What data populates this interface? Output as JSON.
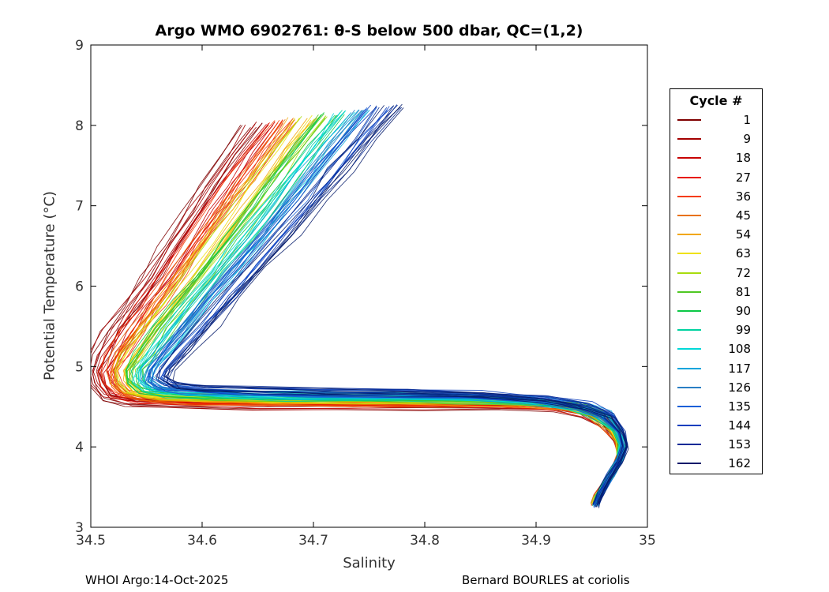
{
  "page": {
    "title": "Argo WMO 6902761: θ-S below 500 dbar,  QC=(1,2)",
    "footer_left": "WHOI Argo:14-Oct-2025",
    "footer_right": "Bernard BOURLES at coriolis"
  },
  "chart_data": {
    "type": "line",
    "title": "Argo WMO 6902761: θ-S below 500 dbar,  QC=(1,2)",
    "xlabel": "Salinity",
    "ylabel": "Potential Temperature (°C)",
    "xlim": [
      34.5,
      35.0
    ],
    "ylim": [
      3,
      9
    ],
    "xticks": [
      34.5,
      34.6,
      34.7,
      34.8,
      34.9,
      35
    ],
    "xtick_labels": [
      "34.5",
      "34.6",
      "34.7",
      "34.8",
      "34.9",
      "35"
    ],
    "yticks": [
      3,
      4,
      5,
      6,
      7,
      8,
      9
    ],
    "ytick_labels": [
      "3",
      "4",
      "5",
      "6",
      "7",
      "8",
      "9"
    ],
    "grid": false,
    "legend": {
      "title": "Cycle #",
      "position": "right-outside"
    },
    "series": [
      {
        "name": "1",
        "color": "#7f0000",
        "blend": 0.0
      },
      {
        "name": "9",
        "color": "#a40000",
        "blend": 0.056
      },
      {
        "name": "18",
        "color": "#c80000",
        "blend": 0.111
      },
      {
        "name": "27",
        "color": "#e81800",
        "blend": 0.167
      },
      {
        "name": "36",
        "color": "#f53b00",
        "blend": 0.222
      },
      {
        "name": "45",
        "color": "#e87211",
        "blend": 0.278
      },
      {
        "name": "54",
        "color": "#f2a705",
        "blend": 0.333
      },
      {
        "name": "63",
        "color": "#efe111",
        "blend": 0.389
      },
      {
        "name": "72",
        "color": "#a8dc0e",
        "blend": 0.444
      },
      {
        "name": "81",
        "color": "#4fc822",
        "blend": 0.5
      },
      {
        "name": "90",
        "color": "#0cc846",
        "blend": 0.556
      },
      {
        "name": "99",
        "color": "#00d2a0",
        "blend": 0.611
      },
      {
        "name": "108",
        "color": "#00d8d8",
        "blend": 0.667
      },
      {
        "name": "117",
        "color": "#00a4dc",
        "blend": 0.722
      },
      {
        "name": "126",
        "color": "#2a7fc4",
        "blend": 0.778
      },
      {
        "name": "135",
        "color": "#155fd8",
        "blend": 0.833
      },
      {
        "name": "144",
        "color": "#0b3fbe",
        "blend": 0.889
      },
      {
        "name": "153",
        "color": "#062a96",
        "blend": 0.944
      },
      {
        "name": "162",
        "color": "#041a6a",
        "blend": 1.0
      }
    ],
    "profile_early_cycles": [
      [
        34.645,
        8.0
      ],
      [
        34.625,
        7.62
      ],
      [
        34.606,
        7.24
      ],
      [
        34.59,
        6.92
      ],
      [
        34.57,
        6.5
      ],
      [
        34.552,
        6.1
      ],
      [
        34.534,
        5.74
      ],
      [
        34.519,
        5.44
      ],
      [
        34.507,
        5.14
      ],
      [
        34.502,
        4.94
      ],
      [
        34.505,
        4.78
      ],
      [
        34.514,
        4.62
      ],
      [
        34.534,
        4.55
      ],
      [
        34.574,
        4.52
      ],
      [
        34.64,
        4.5
      ],
      [
        34.72,
        4.5
      ],
      [
        34.8,
        4.51
      ],
      [
        34.868,
        4.52
      ],
      [
        34.918,
        4.5
      ],
      [
        34.946,
        4.42
      ],
      [
        34.961,
        4.28
      ],
      [
        34.971,
        4.1
      ],
      [
        34.976,
        3.94
      ],
      [
        34.971,
        3.76
      ],
      [
        34.962,
        3.56
      ],
      [
        34.955,
        3.4
      ],
      [
        34.952,
        3.3
      ]
    ],
    "profile_late_cycles": [
      [
        34.775,
        8.25
      ],
      [
        34.75,
        7.85
      ],
      [
        34.726,
        7.45
      ],
      [
        34.705,
        7.1
      ],
      [
        34.678,
        6.65
      ],
      [
        34.652,
        6.25
      ],
      [
        34.628,
        5.88
      ],
      [
        34.606,
        5.52
      ],
      [
        34.586,
        5.2
      ],
      [
        34.57,
        4.98
      ],
      [
        34.566,
        4.85
      ],
      [
        34.576,
        4.77
      ],
      [
        34.602,
        4.74
      ],
      [
        34.648,
        4.72
      ],
      [
        34.712,
        4.7
      ],
      [
        34.782,
        4.69
      ],
      [
        34.852,
        4.66
      ],
      [
        34.908,
        4.6
      ],
      [
        34.946,
        4.51
      ],
      [
        34.966,
        4.38
      ],
      [
        34.978,
        4.18
      ],
      [
        34.981,
        4.0
      ],
      [
        34.975,
        3.82
      ],
      [
        34.966,
        3.62
      ],
      [
        34.959,
        3.45
      ],
      [
        34.956,
        3.34
      ],
      [
        34.954,
        3.27
      ]
    ],
    "replicates_per_cycle": 5
  }
}
